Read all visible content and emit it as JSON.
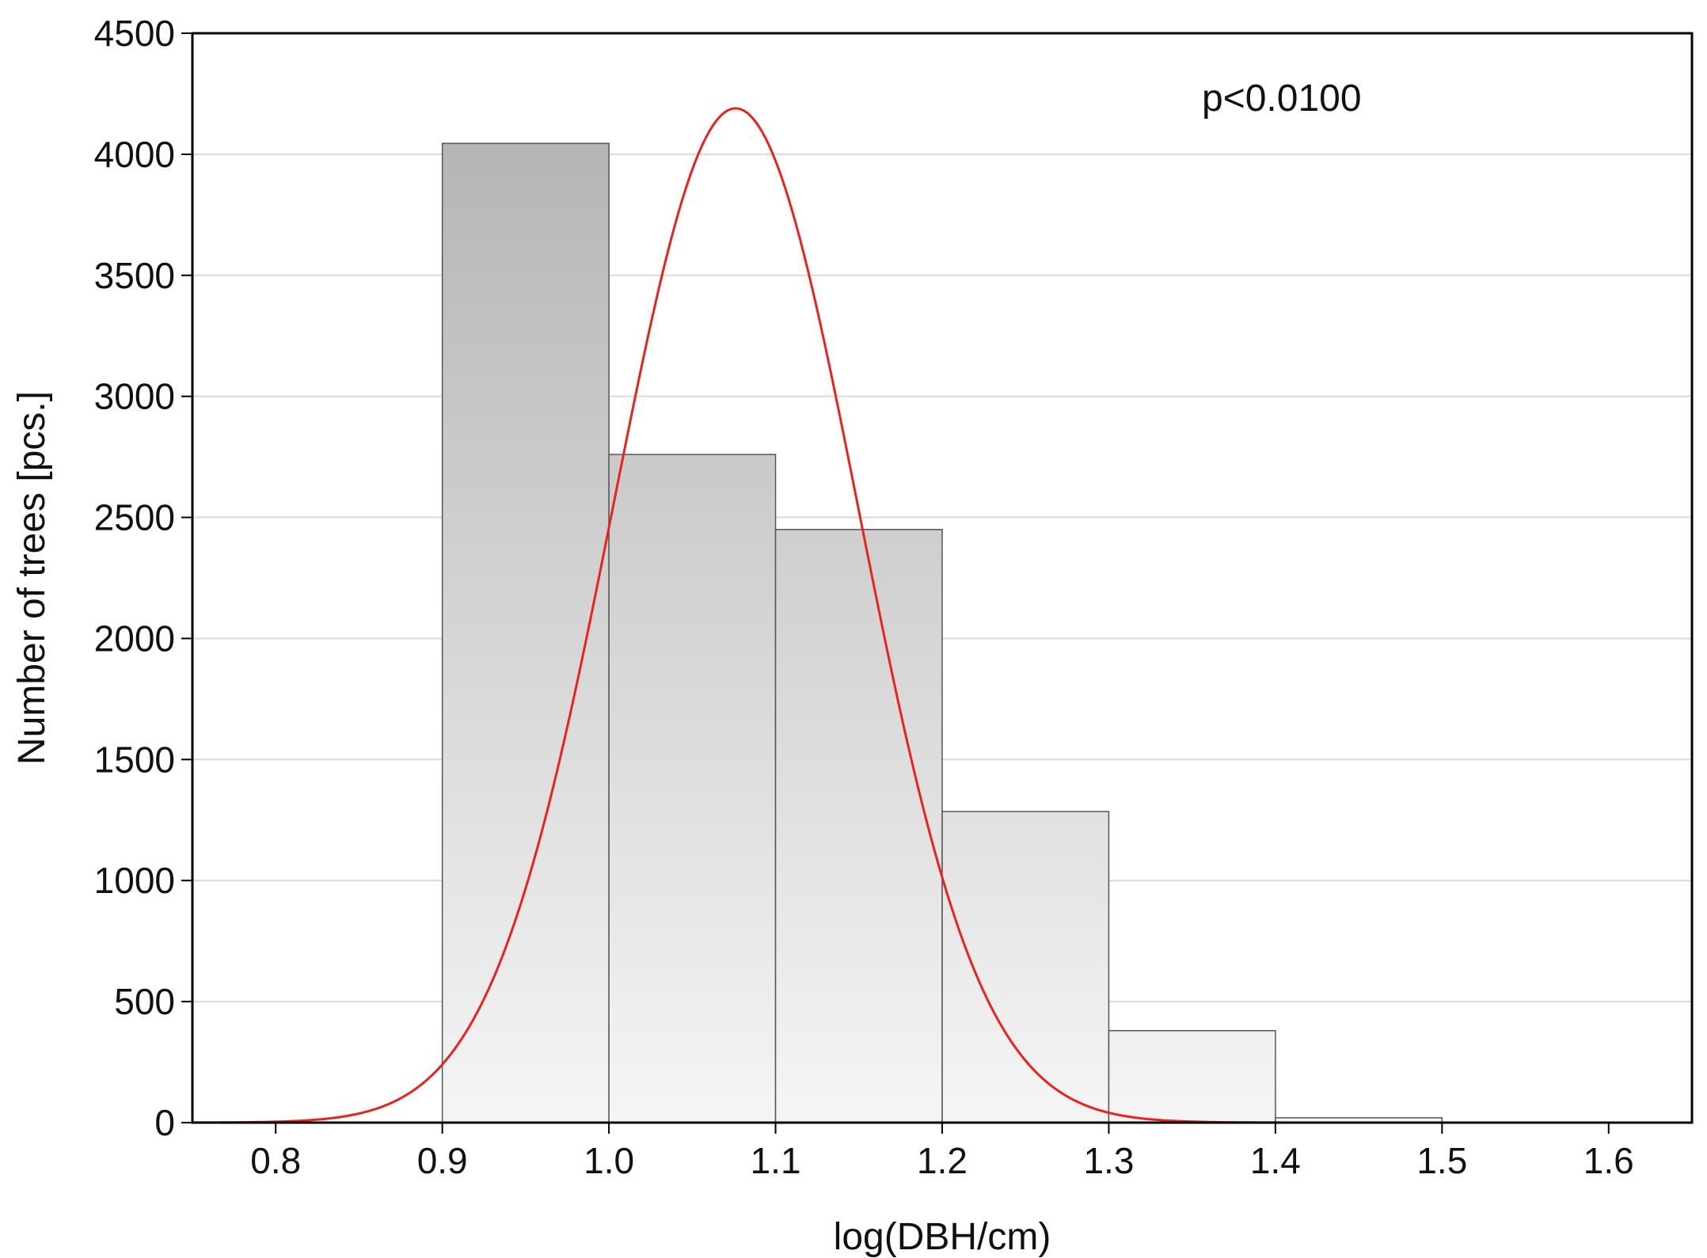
{
  "chart_data": {
    "type": "bar",
    "xlabel": "log(DBH/cm)",
    "ylabel": "Number of trees  [pcs.]",
    "annotation": "p<0.0100",
    "xlim": [
      0.75,
      1.65
    ],
    "ylim": [
      0,
      4500
    ],
    "x_ticks": [
      0.8,
      0.9,
      1.0,
      1.1,
      1.2,
      1.3,
      1.4,
      1.5,
      1.6
    ],
    "x_tick_labels": [
      "0.8",
      "0.9",
      "1.0",
      "1.1",
      "1.2",
      "1.3",
      "1.4",
      "1.5",
      "1.6"
    ],
    "y_ticks": [
      0,
      500,
      1000,
      1500,
      2000,
      2500,
      3000,
      3500,
      4000,
      4500
    ],
    "y_tick_labels": [
      "0",
      "500",
      "1000",
      "1500",
      "2000",
      "2500",
      "3000",
      "3500",
      "4000",
      "4500"
    ],
    "grid": true,
    "bins": [
      {
        "from": 0.9,
        "to": 1.0,
        "value": 4045
      },
      {
        "from": 1.0,
        "to": 1.1,
        "value": 2760
      },
      {
        "from": 1.1,
        "to": 1.2,
        "value": 2450
      },
      {
        "from": 1.2,
        "to": 1.3,
        "value": 1285
      },
      {
        "from": 1.3,
        "to": 1.4,
        "value": 380
      },
      {
        "from": 1.4,
        "to": 1.5,
        "value": 20
      }
    ],
    "fitted_curve": {
      "type": "normal",
      "mean": 1.076,
      "peak": 4190,
      "sd": 0.0736
    },
    "colors": {
      "curve": "#e8231f",
      "bar_top": "#aeaeae",
      "bar_bottom": "#f5f5f5",
      "bar_stroke": "#555555",
      "grid": "#d9d9d9",
      "frame": "#000000"
    }
  }
}
